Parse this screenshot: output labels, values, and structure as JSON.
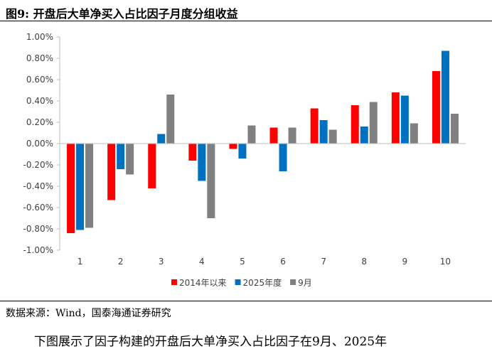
{
  "figure_label": "图9:",
  "title": "开盘后大单净买入占比因子月度分组收益",
  "source": "数据来源：Wind，国泰海通证券研究",
  "body_text_fragment": "下图展示了因子构建的开盘后大单净买入占比因子在9月、2025年",
  "chart_data": {
    "type": "bar",
    "categories": [
      "1",
      "2",
      "3",
      "4",
      "5",
      "6",
      "7",
      "8",
      "9",
      "10"
    ],
    "series": [
      {
        "name": "2014年以来",
        "color": "#ff0000",
        "values": [
          -0.84,
          -0.53,
          -0.42,
          -0.16,
          -0.05,
          0.15,
          0.33,
          0.36,
          0.48,
          0.68
        ]
      },
      {
        "name": "2025年度",
        "color": "#0070c0",
        "values": [
          -0.81,
          -0.24,
          0.09,
          -0.35,
          -0.14,
          -0.26,
          0.22,
          0.16,
          0.45,
          0.87
        ]
      },
      {
        "name": "9月",
        "color": "#808080",
        "values": [
          -0.79,
          -0.29,
          0.46,
          -0.7,
          0.17,
          0.15,
          0.13,
          0.39,
          0.19,
          0.28
        ]
      }
    ],
    "ylim": [
      -1.0,
      1.0
    ],
    "yticks": [
      1.0,
      0.8,
      0.6,
      0.4,
      0.2,
      0.0,
      -0.2,
      -0.4,
      -0.6,
      -0.8,
      -1.0
    ],
    "ytick_labels": [
      "1.00%",
      "0.80%",
      "0.60%",
      "0.40%",
      "0.20%",
      "0.00%",
      "-0.20%",
      "-0.40%",
      "-0.60%",
      "-0.80%",
      "-1.00%"
    ],
    "grid": false,
    "legend_position": "bottom"
  }
}
